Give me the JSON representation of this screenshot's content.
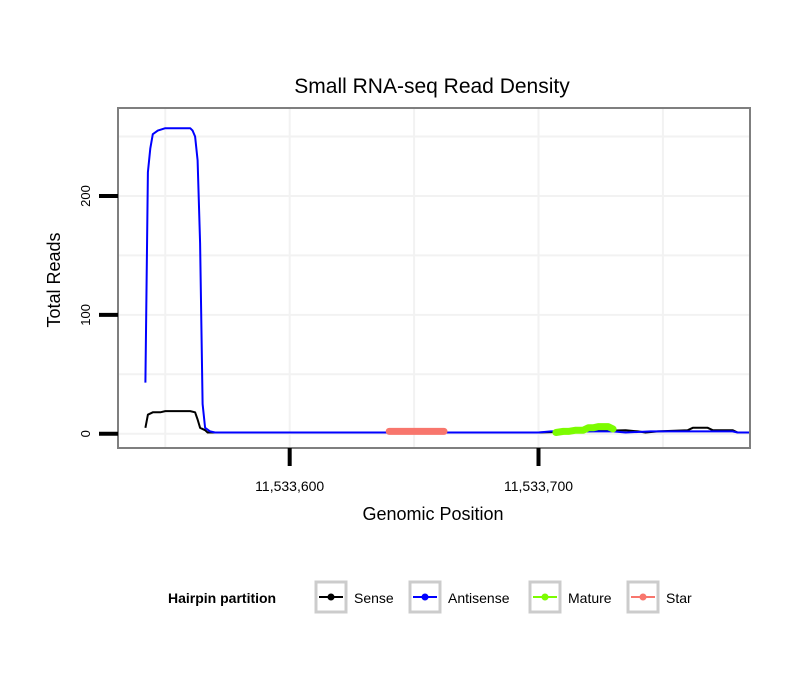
{
  "chart_data": {
    "type": "line",
    "title": "Small RNA-seq Read Density",
    "xlabel": "Genomic Position",
    "ylabel": "Total Reads",
    "xlim": [
      11533531,
      11533785
    ],
    "ylim": [
      -12,
      274
    ],
    "x_ticks": [
      {
        "value": 11533600,
        "label": "11,533,600"
      },
      {
        "value": 11533700,
        "label": "11,533,700"
      }
    ],
    "y_ticks": [
      {
        "value": 0,
        "label": "0"
      },
      {
        "value": 100,
        "label": "100"
      },
      {
        "value": 200,
        "label": "200"
      }
    ],
    "grid": true,
    "legend": {
      "title": "Hairpin partition",
      "position": "bottom",
      "entries": [
        "Sense",
        "Antisense",
        "Mature",
        "Star"
      ]
    },
    "series": [
      {
        "name": "Sense",
        "color": "#000000",
        "points": [
          [
            11533542,
            5
          ],
          [
            11533543,
            16
          ],
          [
            11533545,
            18
          ],
          [
            11533548,
            18
          ],
          [
            11533550,
            19
          ],
          [
            11533560,
            19
          ],
          [
            11533562,
            18
          ],
          [
            11533563,
            12
          ],
          [
            11533564,
            5
          ],
          [
            11533566,
            3
          ],
          [
            11533567,
            1
          ],
          [
            11533570,
            1
          ],
          [
            11533600,
            1
          ],
          [
            11533650,
            1
          ],
          [
            11533700,
            1
          ],
          [
            11533735,
            3
          ],
          [
            11533740,
            2
          ],
          [
            11533743,
            1
          ],
          [
            11533748,
            2
          ],
          [
            11533760,
            3
          ],
          [
            11533762,
            5
          ],
          [
            11533768,
            5
          ],
          [
            11533770,
            3
          ],
          [
            11533778,
            3
          ],
          [
            11533780,
            1
          ],
          [
            11533785,
            1
          ]
        ]
      },
      {
        "name": "Antisense",
        "color": "#0000ff",
        "points": [
          [
            11533542,
            43
          ],
          [
            11533543,
            220
          ],
          [
            11533544,
            240
          ],
          [
            11533545,
            252
          ],
          [
            11533547,
            255
          ],
          [
            11533550,
            257
          ],
          [
            11533560,
            257
          ],
          [
            11533561,
            255
          ],
          [
            11533562,
            250
          ],
          [
            11533563,
            230
          ],
          [
            11533564,
            160
          ],
          [
            11533565,
            25
          ],
          [
            11533566,
            5
          ],
          [
            11533568,
            2
          ],
          [
            11533570,
            1
          ],
          [
            11533700,
            1
          ],
          [
            11533705,
            2
          ],
          [
            11533730,
            2
          ],
          [
            11533735,
            1
          ],
          [
            11533745,
            2
          ],
          [
            11533770,
            2
          ],
          [
            11533778,
            2
          ],
          [
            11533780,
            1
          ],
          [
            11533785,
            1
          ]
        ]
      },
      {
        "name": "Mature",
        "color": "#7cfc00",
        "points": [
          [
            11533707,
            1
          ],
          [
            11533710,
            2
          ],
          [
            11533712,
            2
          ],
          [
            11533715,
            3
          ],
          [
            11533718,
            3
          ],
          [
            11533720,
            5
          ],
          [
            11533722,
            5
          ],
          [
            11533724,
            6
          ],
          [
            11533728,
            6
          ],
          [
            11533730,
            4
          ]
        ]
      },
      {
        "name": "Star",
        "color": "#f8766d",
        "points": [
          [
            11533640,
            2
          ],
          [
            11533645,
            2
          ],
          [
            11533650,
            2
          ],
          [
            11533655,
            2
          ],
          [
            11533662,
            2
          ]
        ]
      }
    ]
  }
}
